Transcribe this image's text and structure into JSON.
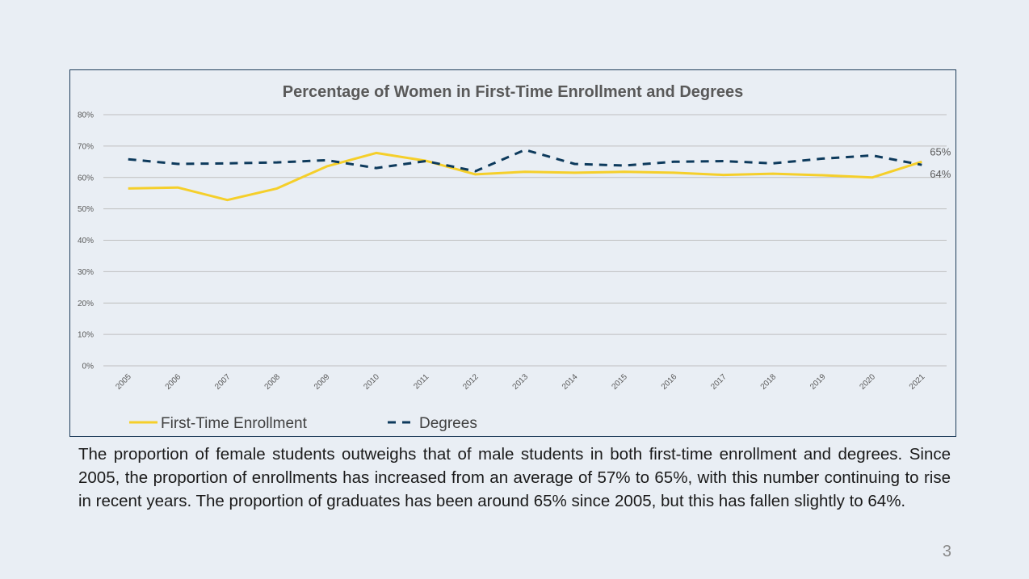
{
  "slide": {
    "description": "The proportion of female students outweighs that of male students in both first-time enrollment and degrees. Since 2005, the proportion of enrollments has increased from an average of 57% to 65%, with this number continuing to rise in recent years. The proportion of graduates has been around 65% since 2005, but this has fallen slightly to 64%.",
    "page_number": "3"
  },
  "colors": {
    "enrollment": "#f5cf2a",
    "degrees": "#0d3a5c",
    "grid": "#bfbfbf",
    "text": "#595959"
  },
  "chart_data": {
    "type": "line",
    "title": "Percentage of Women in First-Time Enrollment and Degrees",
    "categories": [
      "2005",
      "2006",
      "2007",
      "2008",
      "2009",
      "2010",
      "2011",
      "2012",
      "2013",
      "2014",
      "2015",
      "2016",
      "2017",
      "2018",
      "2019",
      "2020",
      "2021"
    ],
    "ylim": [
      0,
      80
    ],
    "yticks": [
      "0%",
      "10%",
      "20%",
      "30%",
      "40%",
      "50%",
      "60%",
      "70%",
      "80%"
    ],
    "grid": true,
    "legend_position": "bottom-left",
    "series": [
      {
        "name": "First-Time Enrollment",
        "style": "solid",
        "color": "#f5cf2a",
        "values": [
          56.5,
          56.8,
          52.8,
          56.5,
          63.5,
          67.8,
          65.3,
          61.0,
          61.8,
          61.5,
          61.8,
          61.5,
          60.8,
          61.2,
          60.7,
          60.0,
          65.0
        ],
        "end_label": "65%"
      },
      {
        "name": "Degrees",
        "style": "dashed",
        "color": "#0d3a5c",
        "values": [
          65.8,
          64.3,
          64.5,
          64.8,
          65.5,
          63.0,
          65.2,
          62.0,
          68.8,
          64.3,
          63.8,
          65.0,
          65.2,
          64.5,
          66.0,
          67.0,
          64.0
        ],
        "end_label": "64%"
      }
    ]
  }
}
